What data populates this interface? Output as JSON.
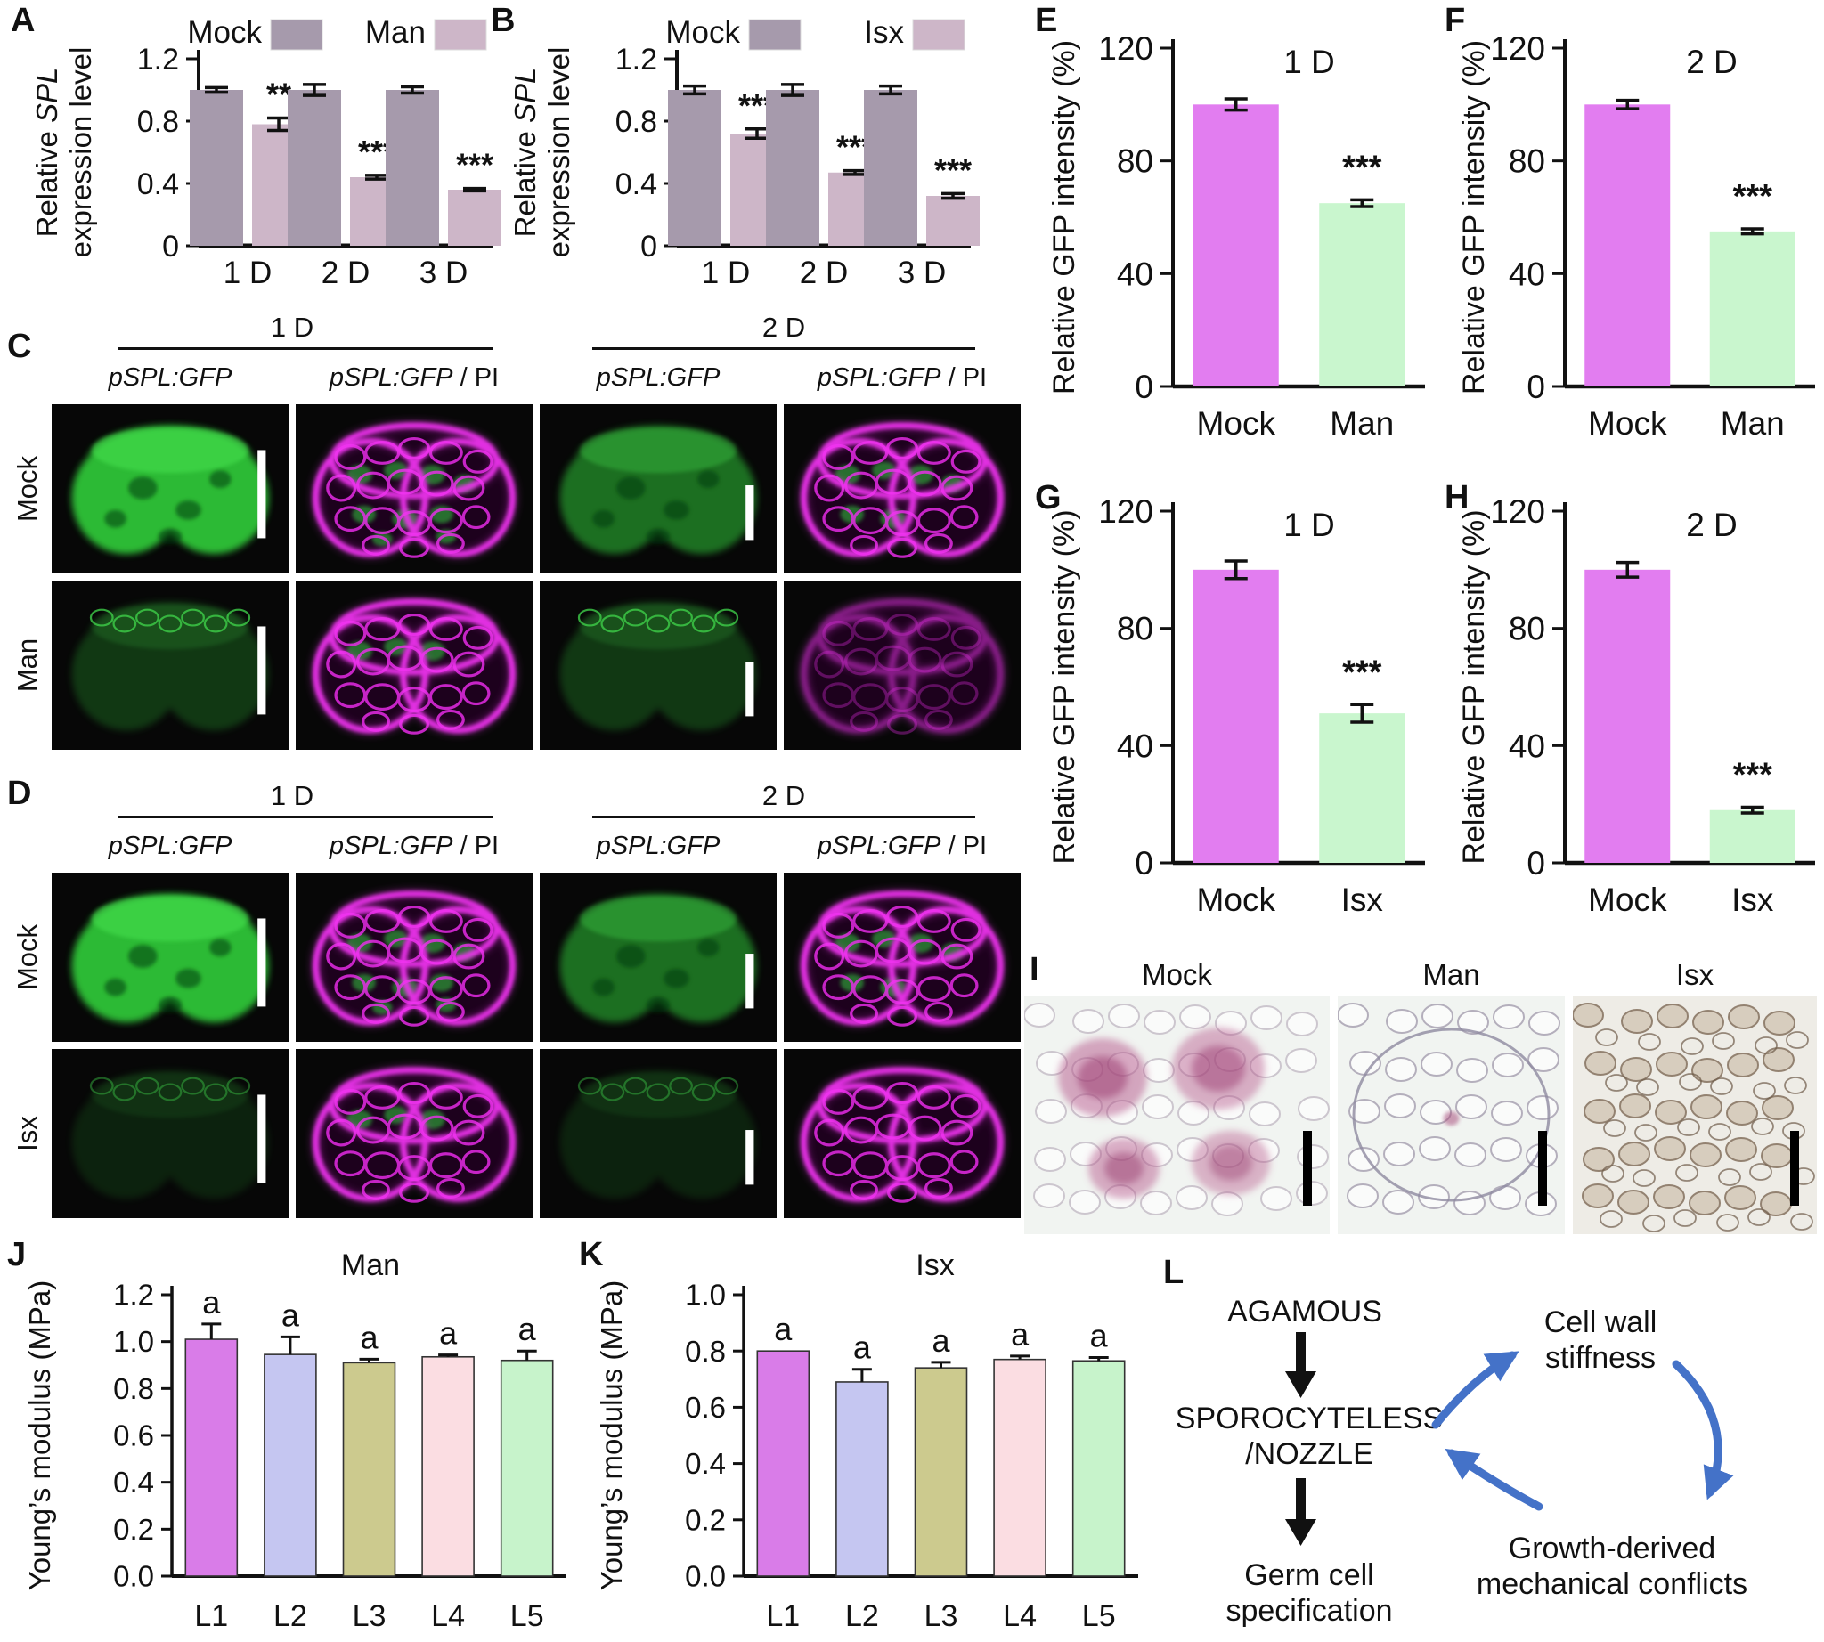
{
  "panel_labels": {
    "A": "A",
    "B": "B",
    "C": "C",
    "D": "D",
    "E": "E",
    "F": "F",
    "G": "G",
    "H": "H",
    "I": "I",
    "J": "J",
    "K": "K",
    "L": "L"
  },
  "chart_data": [
    {
      "id": "A",
      "type": "bar",
      "title": "",
      "ylabel": "Relative SPL expression level",
      "ylabel_lines": [
        [
          {
            "t": "Relative "
          },
          {
            "t": "SPL",
            "italic": true
          }
        ],
        [
          {
            "t": "expression level"
          }
        ]
      ],
      "categories": [
        "1 D",
        "2 D",
        "3 D"
      ],
      "series": [
        {
          "name": "Mock",
          "color": "#a69aac",
          "values": [
            1.0,
            1.0,
            1.0
          ],
          "errors": [
            0.015,
            0.035,
            0.02
          ]
        },
        {
          "name": "Man",
          "color": "#cdb6c8",
          "values": [
            0.78,
            0.44,
            0.36
          ],
          "errors": [
            0.04,
            0.012,
            0.008
          ]
        }
      ],
      "sig": [
        "**",
        "***",
        "***"
      ],
      "ylim": [
        0,
        1.2
      ],
      "tick_values": [
        0,
        0.4,
        0.8,
        1.2
      ],
      "tick_labels": [
        "0",
        "0.4",
        "0.8",
        "1.2"
      ],
      "grid": false,
      "legend_position": "top"
    },
    {
      "id": "B",
      "type": "bar",
      "title": "",
      "ylabel": "Relative SPL expression level",
      "ylabel_lines": [
        [
          {
            "t": "Relative "
          },
          {
            "t": "SPL",
            "italic": true
          }
        ],
        [
          {
            "t": "expression level"
          }
        ]
      ],
      "categories": [
        "1 D",
        "2 D",
        "3 D"
      ],
      "series": [
        {
          "name": "Mock",
          "color": "#a69aac",
          "values": [
            1.0,
            1.0,
            1.0
          ],
          "errors": [
            0.025,
            0.035,
            0.025
          ]
        },
        {
          "name": "Isx",
          "color": "#cdb6c8",
          "values": [
            0.72,
            0.47,
            0.32
          ],
          "errors": [
            0.03,
            0.012,
            0.015
          ]
        }
      ],
      "sig": [
        "***",
        "***",
        "***"
      ],
      "ylim": [
        0,
        1.2
      ],
      "tick_values": [
        0,
        0.4,
        0.8,
        1.2
      ],
      "tick_labels": [
        "0",
        "0.4",
        "0.8",
        "1.2"
      ],
      "grid": false,
      "legend_position": "top"
    },
    {
      "id": "E",
      "type": "bar",
      "title": "1 D",
      "ylabel": "Relative GFP intensity (%)",
      "categories": [
        "Mock",
        "Man"
      ],
      "values": [
        100,
        65
      ],
      "errors": [
        2,
        1.2
      ],
      "colors": [
        "#e27df0",
        "#c9f6ce"
      ],
      "sig": [
        "",
        "***"
      ],
      "ylim": [
        0,
        120
      ],
      "tick_values": [
        0,
        40,
        80,
        120
      ],
      "tick_labels": [
        "0",
        "40",
        "80",
        "120"
      ],
      "grid": false
    },
    {
      "id": "F",
      "type": "bar",
      "title": "2 D",
      "ylabel": "Relative GFP intensity (%)",
      "categories": [
        "Mock",
        "Man"
      ],
      "values": [
        100,
        55
      ],
      "errors": [
        1.5,
        0.9
      ],
      "colors": [
        "#e27df0",
        "#c9f6ce"
      ],
      "sig": [
        "",
        "***"
      ],
      "ylim": [
        0,
        120
      ],
      "tick_values": [
        0,
        40,
        80,
        120
      ],
      "tick_labels": [
        "0",
        "40",
        "80",
        "120"
      ],
      "grid": false
    },
    {
      "id": "G",
      "type": "bar",
      "title": "1 D",
      "ylabel": "Relative GFP intensity (%)",
      "categories": [
        "Mock",
        "Isx"
      ],
      "values": [
        100,
        51
      ],
      "errors": [
        3,
        3
      ],
      "colors": [
        "#e27df0",
        "#c9f6ce"
      ],
      "sig": [
        "",
        "***"
      ],
      "ylim": [
        0,
        120
      ],
      "tick_values": [
        0,
        40,
        80,
        120
      ],
      "tick_labels": [
        "0",
        "40",
        "80",
        "120"
      ],
      "grid": false
    },
    {
      "id": "H",
      "type": "bar",
      "title": "2 D",
      "ylabel": "Relative GFP intensity (%)",
      "categories": [
        "Mock",
        "Isx"
      ],
      "values": [
        100,
        18
      ],
      "errors": [
        2.5,
        1
      ],
      "colors": [
        "#e27df0",
        "#c9f6ce"
      ],
      "sig": [
        "",
        "***"
      ],
      "ylim": [
        0,
        120
      ],
      "tick_values": [
        0,
        40,
        80,
        120
      ],
      "tick_labels": [
        "0",
        "40",
        "80",
        "120"
      ],
      "grid": false
    },
    {
      "id": "J",
      "type": "bar",
      "title": "Man",
      "ylabel": "Young’s modulus (MPa)",
      "categories": [
        "L1",
        "L2",
        "L3",
        "L4",
        "L5"
      ],
      "values": [
        1.01,
        0.945,
        0.91,
        0.935,
        0.92
      ],
      "errors": [
        0.065,
        0.075,
        0.015,
        0.008,
        0.04
      ],
      "letters": [
        "a",
        "a",
        "a",
        "a",
        "a"
      ],
      "colors": [
        "#d97ce8",
        "#c5c6f1",
        "#ccca8e",
        "#fbdde2",
        "#c7f3cb"
      ],
      "ylim": [
        0,
        1.2
      ],
      "tick_values": [
        0,
        0.2,
        0.4,
        0.6,
        0.8,
        1.0,
        1.2
      ],
      "tick_labels": [
        "0.0",
        "0.2",
        "0.4",
        "0.6",
        "0.8",
        "1.0",
        "1.2"
      ],
      "grid": false
    },
    {
      "id": "K",
      "type": "bar",
      "title": "Isx",
      "ylabel": "Young’s modulus (MPa)",
      "categories": [
        "L1",
        "L2",
        "L3",
        "L4",
        "L5"
      ],
      "values": [
        0.8,
        0.69,
        0.74,
        0.77,
        0.765
      ],
      "errors": [
        0,
        0.045,
        0.02,
        0.012,
        0.012
      ],
      "letters": [
        "a",
        "a",
        "a",
        "a",
        "a"
      ],
      "colors": [
        "#d97ce8",
        "#c5c6f1",
        "#ccca8e",
        "#fbdde2",
        "#c7f3cb"
      ],
      "ylim": [
        0,
        1.0
      ],
      "tick_values": [
        0,
        0.2,
        0.4,
        0.6,
        0.8,
        1.0
      ],
      "tick_labels": [
        "0.0",
        "0.2",
        "0.4",
        "0.6",
        "0.8",
        "1.0"
      ],
      "grid": false
    }
  ],
  "panelC": {
    "label": "C",
    "groups": [
      {
        "title": "1 D"
      },
      {
        "title": "2 D"
      }
    ],
    "headers": [
      [
        {
          "t": "pSPL:GFP",
          "italic": true
        }
      ],
      [
        {
          "t": "pSPL:GFP",
          "italic": true
        },
        {
          "t": " / PI"
        }
      ],
      [
        {
          "t": "pSPL:GFP",
          "italic": true
        }
      ],
      [
        {
          "t": "pSPL:GFP",
          "italic": true
        },
        {
          "t": " / PI"
        }
      ]
    ],
    "rows": [
      {
        "label": "Mock",
        "cells": [
          {
            "type": "gfp",
            "level": "bright",
            "bar": "tall"
          },
          {
            "type": "pi",
            "green": "rich"
          },
          {
            "type": "gfp",
            "level": "medium",
            "bar": "short"
          },
          {
            "type": "pi",
            "green": "some"
          }
        ]
      },
      {
        "label": "Man",
        "cells": [
          {
            "type": "gfp",
            "level": "dim",
            "bar": "tall"
          },
          {
            "type": "pi",
            "green": "few"
          },
          {
            "type": "gfp",
            "level": "dim",
            "bar": "short"
          },
          {
            "type": "pi",
            "green": "none",
            "dim": true
          }
        ]
      }
    ]
  },
  "panelD": {
    "label": "D",
    "groups": [
      {
        "title": "1 D"
      },
      {
        "title": "2 D"
      }
    ],
    "headers": [
      [
        {
          "t": "pSPL:GFP",
          "italic": true
        }
      ],
      [
        {
          "t": "pSPL:GFP",
          "italic": true
        },
        {
          "t": " / PI"
        }
      ],
      [
        {
          "t": "pSPL:GFP",
          "italic": true
        }
      ],
      [
        {
          "t": "pSPL:GFP",
          "italic": true
        },
        {
          "t": " / PI"
        }
      ]
    ],
    "rows": [
      {
        "label": "Mock",
        "cells": [
          {
            "type": "gfp",
            "level": "bright",
            "bar": "tall"
          },
          {
            "type": "pi",
            "green": "rich"
          },
          {
            "type": "gfp",
            "level": "medium",
            "bar": "short"
          },
          {
            "type": "pi",
            "green": "some"
          }
        ]
      },
      {
        "label": "Isx",
        "cells": [
          {
            "type": "gfp",
            "level": "faint",
            "bar": "tall"
          },
          {
            "type": "pi",
            "green": "few"
          },
          {
            "type": "gfp",
            "level": "faint",
            "bar": "short"
          },
          {
            "type": "pi",
            "green": "none"
          }
        ]
      }
    ]
  },
  "panelI": {
    "label": "I",
    "items": [
      {
        "label": "Mock",
        "kind": "mock"
      },
      {
        "label": "Man",
        "kind": "man"
      },
      {
        "label": "Isx",
        "kind": "isx"
      }
    ]
  },
  "panelL": {
    "label": "L",
    "nodes": {
      "agamous": "AGAMOUS",
      "sporo1": "SPOROCYTELESS",
      "sporo2": "/NOZZLE",
      "germ1": "Germ cell",
      "germ2": "specification",
      "wall1": "Cell wall",
      "wall2": "stiffness",
      "growth1": "Growth-derived",
      "growth2": "mechanical conflicts"
    },
    "colors": {
      "black": "#111111",
      "red": "#cc1111",
      "blue": "#1f72d6",
      "arrow": "#4472c8"
    }
  }
}
